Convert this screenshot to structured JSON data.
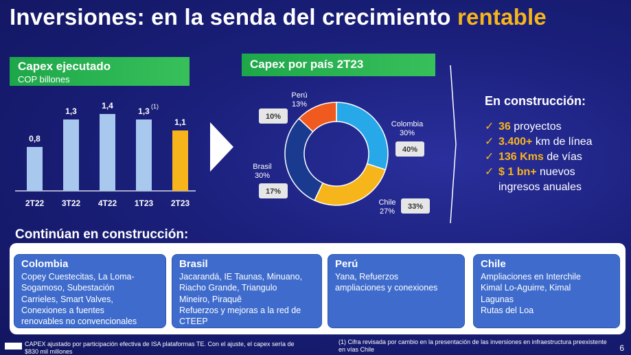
{
  "title": {
    "main": "Inversiones: en la senda del crecimiento",
    "accent": "rentable"
  },
  "capex": {
    "title": "Capex ejecutado",
    "subtitle": "COP billones",
    "note_mark": "(1)",
    "chart_data": {
      "type": "bar",
      "categories": [
        "2T22",
        "3T22",
        "4T22",
        "1T23",
        "2T23"
      ],
      "values": [
        0.8,
        1.3,
        1.4,
        1.3,
        1.1
      ],
      "labels": [
        "0,8",
        "1,3",
        "1,4",
        "1,3",
        "1,1"
      ],
      "colors": [
        "#a9c8ee",
        "#a9c8ee",
        "#a9c8ee",
        "#a9c8ee",
        "#f7b51c"
      ],
      "ylim": [
        0,
        1.6
      ]
    }
  },
  "pais": {
    "title": "Capex por país 2T23",
    "chart_data": {
      "type": "pie",
      "slices": [
        {
          "name": "Colombia",
          "value": 30,
          "label": "30%",
          "box": "40%",
          "color": "#27a8e8"
        },
        {
          "name": "Chile",
          "value": 27,
          "label": "27%",
          "box": "33%",
          "color": "#f7b51c"
        },
        {
          "name": "Brasil",
          "value": 30,
          "label": "30%",
          "box": "17%",
          "color": "#1a3a8f"
        },
        {
          "name": "Perú",
          "value": 13,
          "label": "13%",
          "box": "10%",
          "color": "#f05a1e"
        }
      ]
    }
  },
  "construccion": {
    "head": "En construcción:",
    "items": [
      {
        "hl": "36",
        "text": " proyectos",
        "cont": ""
      },
      {
        "hl": "3.400+",
        "text": " km de línea",
        "cont": ""
      },
      {
        "hl": "136 Kms",
        "text": " de vías",
        "cont": ""
      },
      {
        "hl": "$ 1 bn+",
        "text": " nuevos",
        "cont": "ingresos anuales"
      }
    ]
  },
  "continuan": {
    "title": "Continúan en construcción:",
    "cards": [
      {
        "title": "Colombia",
        "lines": [
          "Copey Cuestecitas, La Loma-",
          "Sogamoso, Subestación",
          "Carrieles, Smart Valves,",
          "Conexiones a fuentes",
          "renovables no convencionales"
        ]
      },
      {
        "title": "Brasil",
        "lines": [
          "Jacarandá, IE Taunas, Minuano,",
          "Riacho Grande, Triangulo",
          "Mineiro, Piraquê",
          "Refuerzos y mejoras a la red de",
          "CTEEP"
        ]
      },
      {
        "title": "Perú",
        "lines": [
          "Yana, Refuerzos",
          "ampliaciones y conexiones"
        ]
      },
      {
        "title": "Chile",
        "lines": [
          "Ampliaciones en Interchile",
          "Kimal Lo-Aguirre, Kimal",
          "Lagunas",
          "Rutas del Loa"
        ]
      }
    ]
  },
  "footer": {
    "note1": "CAPEX ajustado por participación efectiva de ISA plataformas TE. Con el ajuste, el capex sería de $830 mil millones",
    "note2": "(1)  Cifra revisada por cambio en la presentación de las inversiones en infraestructura preexistente en vías Chile",
    "page": "6"
  },
  "colors": {
    "accent": "#f7b51c",
    "green": "#1ea74a",
    "card": "#3f6ccc",
    "bg": "#1a1f7a"
  }
}
